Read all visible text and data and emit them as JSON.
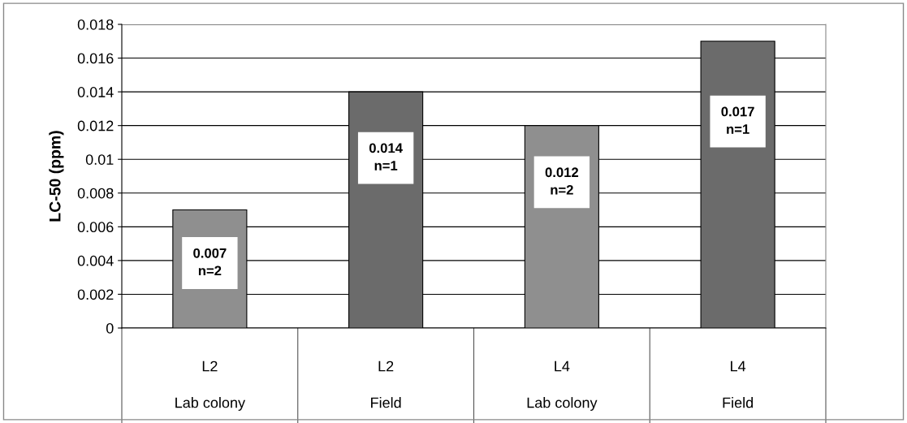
{
  "chart_data": {
    "type": "bar",
    "ylabel": "LC-50 (ppm)",
    "categories": [
      "L2\nLab colony",
      "L2\nField",
      "L4\nLab colony",
      "L4\nField"
    ],
    "values": [
      0.007,
      0.014,
      0.012,
      0.017
    ],
    "colors": [
      "#8f8f8f",
      "#6b6b6b",
      "#8f8f8f",
      "#6b6b6b"
    ],
    "value_labels": [
      "0.007\nn=2",
      "0.014\nn=1",
      "0.012\nn=2",
      "0.017\nn=1"
    ],
    "ylim": [
      0,
      0.018
    ],
    "yticks": [
      0,
      0.002,
      0.004,
      0.006,
      0.008,
      0.01,
      0.012,
      0.014,
      0.016,
      0.018
    ],
    "grid": "y"
  }
}
